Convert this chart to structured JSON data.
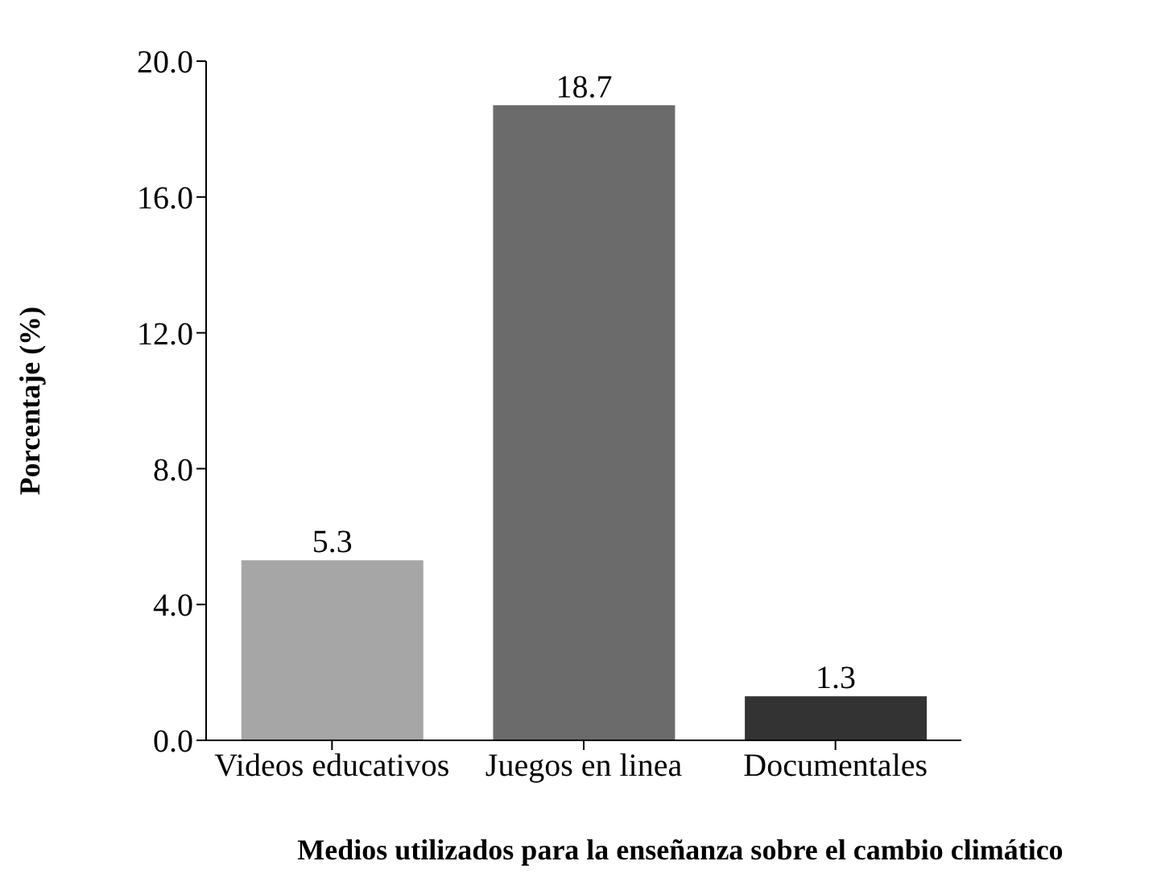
{
  "chart_data": {
    "type": "bar",
    "xlabel": "Medios utilizados para la enseñanza sobre el cambio climático",
    "ylabel": "Porcentaje (%)",
    "categories": [
      "Videos educativos",
      "Juegos en linea",
      "Documentales"
    ],
    "values": [
      5.3,
      18.7,
      1.3
    ],
    "colors": [
      "#a6a6a6",
      "#6b6b6b",
      "#333333"
    ],
    "ylim": [
      0,
      20
    ],
    "yticks": [
      {
        "value": 0,
        "label": "0.0"
      },
      {
        "value": 4,
        "label": "4.0"
      },
      {
        "value": 8,
        "label": "8.0"
      },
      {
        "value": 12,
        "label": "12.0"
      },
      {
        "value": 16,
        "label": "16.0"
      },
      {
        "value": 20,
        "label": "20.0"
      }
    ],
    "data_labels": true,
    "grid": false,
    "legend": false
  }
}
